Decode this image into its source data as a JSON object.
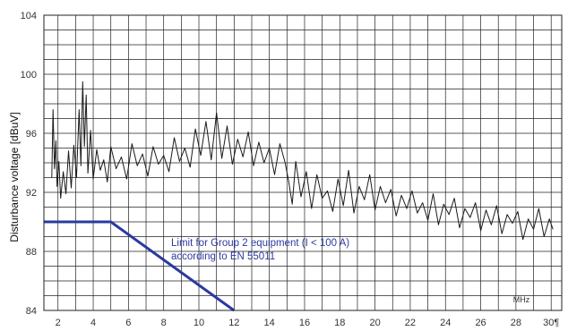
{
  "chart_data": {
    "type": "line",
    "title": "",
    "xlabel": "",
    "ylabel": "Disturbance voltage [dBuV]",
    "x_unit_label": "MHz",
    "x_last_tick_label": "30¶",
    "xlim": [
      1.2,
      30.6
    ],
    "ylim": [
      84,
      104
    ],
    "x_ticks": [
      2,
      4,
      6,
      8,
      10,
      12,
      14,
      16,
      18,
      20,
      22,
      24,
      26,
      28,
      30
    ],
    "y_ticks": [
      84,
      88,
      92,
      96,
      100,
      104
    ],
    "grid": true,
    "colors": {
      "measured": "#1a1a1a",
      "limit": "#2b3aa0",
      "grid": "#222222"
    },
    "series": [
      {
        "key": "measured",
        "x": [
          1.65,
          1.72,
          1.8,
          1.88,
          1.95,
          2.05,
          2.15,
          2.3,
          2.45,
          2.6,
          2.75,
          2.9,
          3.05,
          3.2,
          3.3,
          3.4,
          3.5,
          3.6,
          3.7,
          3.85,
          4.0,
          4.2,
          4.4,
          4.6,
          4.8,
          5.0,
          5.3,
          5.6,
          5.9,
          6.2,
          6.5,
          6.8,
          7.1,
          7.4,
          7.7,
          8.0,
          8.3,
          8.6,
          8.9,
          9.2,
          9.5,
          9.8,
          10.1,
          10.4,
          10.7,
          11.0,
          11.3,
          11.6,
          11.9,
          12.2,
          12.5,
          12.8,
          13.1,
          13.4,
          13.7,
          14.0,
          14.3,
          14.6,
          14.9,
          15.1,
          15.3,
          15.5,
          15.8,
          16.1,
          16.4,
          16.7,
          17.0,
          17.3,
          17.6,
          17.9,
          18.2,
          18.5,
          18.8,
          19.1,
          19.4,
          19.7,
          20.0,
          20.3,
          20.6,
          20.9,
          21.2,
          21.5,
          21.8,
          22.1,
          22.4,
          22.7,
          23.0,
          23.3,
          23.6,
          23.9,
          24.2,
          24.5,
          24.8,
          25.1,
          25.4,
          25.7,
          26.0,
          26.3,
          26.6,
          26.9,
          27.2,
          27.5,
          27.8,
          28.1,
          28.4,
          28.7,
          29.0,
          29.3,
          29.6,
          29.9,
          30.1
        ],
        "values": [
          93.0,
          97.6,
          93.6,
          95.5,
          92.4,
          94.1,
          91.6,
          93.4,
          91.9,
          94.8,
          92.3,
          95.2,
          93.0,
          97.6,
          93.8,
          99.5,
          95.1,
          98.6,
          93.3,
          96.2,
          92.9,
          94.9,
          93.5,
          94.2,
          92.7,
          95.1,
          93.6,
          94.4,
          92.9,
          95.3,
          93.8,
          94.6,
          93.1,
          95.1,
          93.9,
          94.5,
          93.4,
          95.7,
          94.1,
          95.0,
          93.7,
          96.3,
          94.5,
          96.8,
          94.2,
          97.4,
          94.3,
          96.5,
          93.9,
          95.6,
          94.4,
          96.1,
          93.8,
          95.4,
          94.0,
          95.0,
          93.2,
          95.3,
          94.0,
          92.7,
          91.2,
          94.1,
          91.7,
          93.4,
          90.9,
          93.2,
          91.6,
          92.1,
          90.7,
          92.9,
          91.1,
          93.5,
          90.6,
          92.4,
          91.5,
          93.2,
          90.8,
          92.4,
          91.3,
          92.2,
          90.4,
          91.8,
          90.9,
          92.1,
          90.6,
          91.3,
          90.1,
          91.9,
          89.8,
          91.2,
          90.5,
          91.6,
          89.6,
          90.9,
          90.3,
          91.3,
          89.4,
          90.8,
          89.8,
          91.1,
          89.2,
          90.5,
          89.9,
          90.7,
          88.8,
          90.2,
          89.5,
          90.9,
          89.0,
          90.2,
          89.5
        ]
      },
      {
        "key": "limit",
        "x": [
          1.2,
          5.0,
          12.0
        ],
        "values": [
          90.0,
          90.0,
          84.0
        ]
      }
    ],
    "annotations": [
      {
        "text": "Limit for Group 2 equipment (I < 100 A)"
      },
      {
        "text": "according to EN 55011"
      }
    ]
  }
}
